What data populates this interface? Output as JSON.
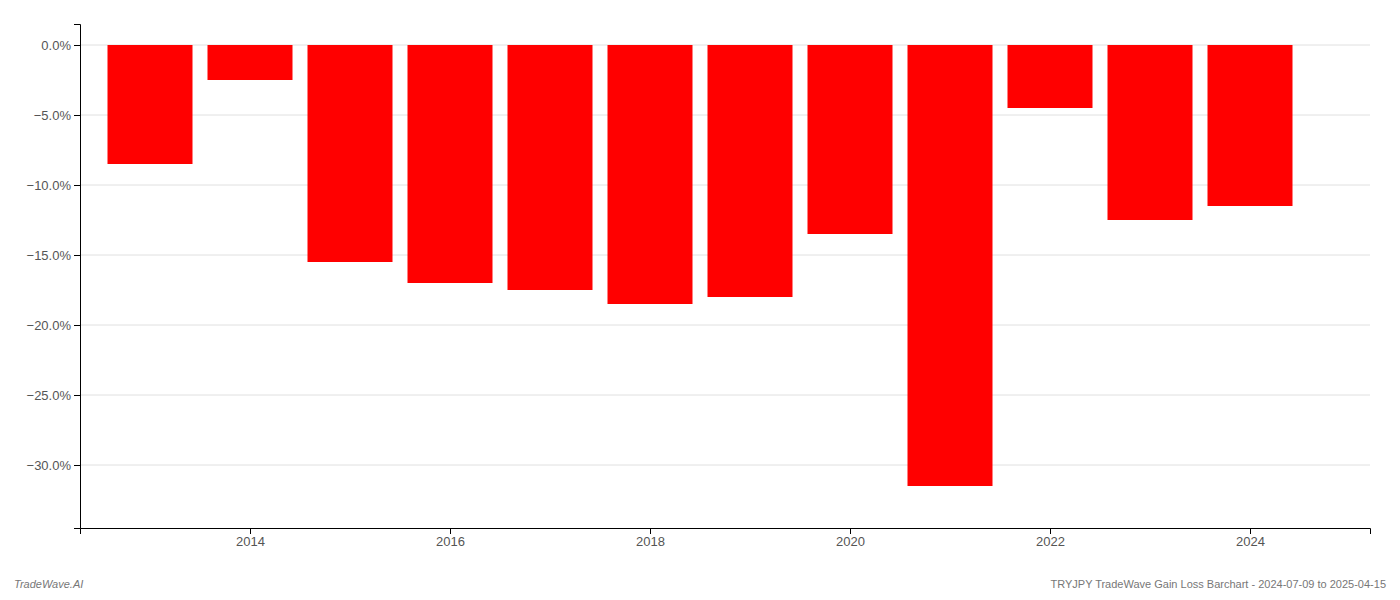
{
  "chart_data": {
    "type": "bar",
    "x": [
      2013,
      2014,
      2015,
      2016,
      2017,
      2018,
      2019,
      2020,
      2021,
      2022,
      2023,
      2024
    ],
    "values": [
      -0.085,
      -0.025,
      -0.155,
      -0.17,
      -0.175,
      -0.185,
      -0.18,
      -0.135,
      -0.315,
      -0.045,
      -0.125,
      -0.115
    ],
    "color": "#ff0000",
    "xlim": [
      2012.3,
      2025.2
    ],
    "xticks": [
      2014,
      2016,
      2018,
      2020,
      2022,
      2024
    ],
    "ylim": [
      -0.345,
      0.015
    ],
    "yticks": [
      {
        "value": 0.0,
        "label": "0.0%"
      },
      {
        "value": -0.05,
        "label": "−5.0%"
      },
      {
        "value": -0.1,
        "label": "−10.0%"
      },
      {
        "value": -0.15,
        "label": "−15.0%"
      },
      {
        "value": -0.2,
        "label": "−20.0%"
      },
      {
        "value": -0.25,
        "label": "−25.0%"
      },
      {
        "value": -0.3,
        "label": "−30.0%"
      }
    ],
    "grid": true,
    "annotations": [
      "TradeWave.AI",
      "TRYJPY TradeWave Gain Loss Barchart - 2024-07-09 to 2025-04-15"
    ]
  }
}
